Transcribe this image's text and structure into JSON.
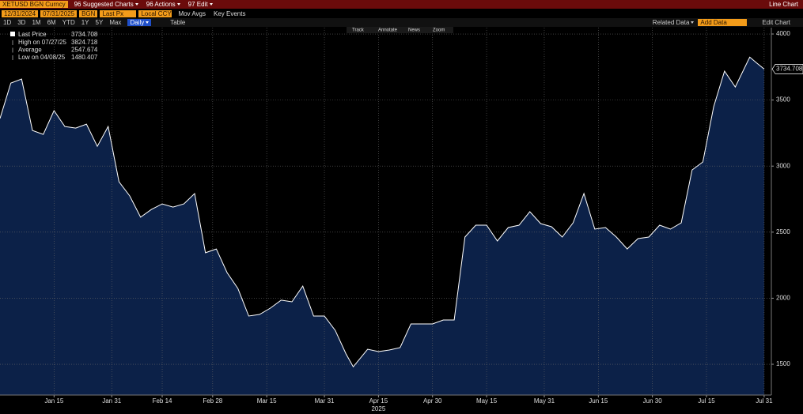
{
  "toolbar": {
    "security": "XETUSD BGN Curncy",
    "menus": [
      "96 Suggested Charts",
      "96 Actions",
      "97 Edit"
    ],
    "view": "Line Chart",
    "start_date": "12/31/2024",
    "end_date": "07/31/2025",
    "source": "BGN",
    "field": "Last Px",
    "currency": "Local CCY",
    "options": [
      "Mov Avgs",
      "Key Events"
    ],
    "ranges": [
      "1D",
      "3D",
      "1M",
      "6M",
      "YTD",
      "1Y",
      "5Y",
      "Max"
    ],
    "frequency": "Daily",
    "table": "Table",
    "related": "Related Data",
    "add_data": "Add Data",
    "edit_chart": "Edit Chart",
    "tools": [
      "Track",
      "Annotate",
      "News",
      "Zoom"
    ]
  },
  "chart_data": {
    "type": "line",
    "grid": true,
    "fill": "#0c2148",
    "xlabel": "2025",
    "x": [
      "2024-12-31",
      "2025-01-03",
      "2025-01-06",
      "2025-01-09",
      "2025-01-12",
      "2025-01-15",
      "2025-01-18",
      "2025-01-21",
      "2025-01-24",
      "2025-01-27",
      "2025-01-30",
      "2025-02-02",
      "2025-02-05",
      "2025-02-08",
      "2025-02-11",
      "2025-02-14",
      "2025-02-17",
      "2025-02-20",
      "2025-02-23",
      "2025-02-26",
      "2025-03-01",
      "2025-03-04",
      "2025-03-07",
      "2025-03-10",
      "2025-03-13",
      "2025-03-16",
      "2025-03-19",
      "2025-03-22",
      "2025-03-25",
      "2025-03-28",
      "2025-03-31",
      "2025-04-03",
      "2025-04-06",
      "2025-04-08",
      "2025-04-12",
      "2025-04-15",
      "2025-04-18",
      "2025-04-21",
      "2025-04-24",
      "2025-04-27",
      "2025-04-30",
      "2025-05-03",
      "2025-05-06",
      "2025-05-09",
      "2025-05-12",
      "2025-05-15",
      "2025-05-18",
      "2025-05-21",
      "2025-05-24",
      "2025-05-27",
      "2025-05-30",
      "2025-06-02",
      "2025-06-05",
      "2025-06-08",
      "2025-06-11",
      "2025-06-14",
      "2025-06-17",
      "2025-06-20",
      "2025-06-23",
      "2025-06-26",
      "2025-06-29",
      "2025-07-02",
      "2025-07-05",
      "2025-07-08",
      "2025-07-11",
      "2025-07-14",
      "2025-07-17",
      "2025-07-20",
      "2025-07-23",
      "2025-07-27",
      "2025-07-29",
      "2025-07-31"
    ],
    "series": [
      {
        "name": "Last Price",
        "color": "#ffffff",
        "values": [
          3360,
          3629,
          3659,
          3270,
          3240,
          3420,
          3300,
          3288,
          3318,
          3150,
          3300,
          2882,
          2774,
          2613,
          2672,
          2714,
          2690,
          2714,
          2792,
          2344,
          2373,
          2194,
          2074,
          1865,
          1877,
          1925,
          1985,
          1973,
          2092,
          1865,
          1865,
          1757,
          1578,
          1480.407,
          1614,
          1596,
          1608,
          1626,
          1805,
          1805,
          1805,
          1835,
          1835,
          2463,
          2553,
          2553,
          2433,
          2535,
          2553,
          2655,
          2565,
          2541,
          2463,
          2571,
          2792,
          2523,
          2535,
          2463,
          2373,
          2451,
          2463,
          2553,
          2523,
          2571,
          2971,
          3031,
          3450,
          3719,
          3599,
          3824.718,
          3779,
          3734.708
        ]
      }
    ],
    "stats": [
      {
        "label": "High on 07/27/25",
        "value": 3824.718
      },
      {
        "label": "Average",
        "value": 2547.674
      },
      {
        "label": "Low on 04/08/25",
        "value": 1480.407
      }
    ],
    "last_price": 3734.708,
    "xlim": [
      "2024-12-31",
      "2025-08-02"
    ],
    "xticks": [
      {
        "value": "2025-01-15",
        "label": "Jan 15"
      },
      {
        "value": "2025-01-31",
        "label": "Jan 31"
      },
      {
        "value": "2025-02-14",
        "label": "Feb 14"
      },
      {
        "value": "2025-02-28",
        "label": "Feb 28"
      },
      {
        "value": "2025-03-15",
        "label": "Mar 15"
      },
      {
        "value": "2025-03-31",
        "label": "Mar 31"
      },
      {
        "value": "2025-04-15",
        "label": "Apr 15"
      },
      {
        "value": "2025-04-30",
        "label": "Apr 30"
      },
      {
        "value": "2025-05-15",
        "label": "May 15"
      },
      {
        "value": "2025-05-31",
        "label": "May 31"
      },
      {
        "value": "2025-06-15",
        "label": "Jun 15"
      },
      {
        "value": "2025-06-30",
        "label": "Jun 30"
      },
      {
        "value": "2025-07-15",
        "label": "Jul 15"
      },
      {
        "value": "2025-07-31",
        "label": "Jul 31"
      }
    ],
    "ylim": [
      1267,
      4048
    ],
    "yticks": [
      1500,
      2000,
      2500,
      3000,
      3500,
      4000
    ]
  }
}
